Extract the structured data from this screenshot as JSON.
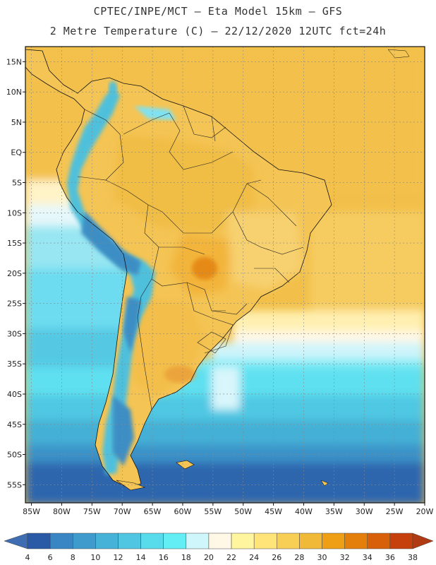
{
  "header": {
    "line1": "CPTEC/INPE/MCT –  Eta Model 15km – GFS",
    "line2": "2 Metre Temperature (C) – 22/12/2020 12UTC fct=24h"
  },
  "axes": {
    "lat_labels": [
      "15N",
      "10N",
      "5N",
      "EQ",
      "5S",
      "10S",
      "15S",
      "20S",
      "25S",
      "30S",
      "35S",
      "40S",
      "45S",
      "50S",
      "55S"
    ],
    "lon_labels": [
      "85W",
      "80W",
      "75W",
      "70W",
      "65W",
      "60W",
      "55W",
      "50W",
      "45W",
      "40W",
      "35W",
      "30W",
      "25W",
      "20W"
    ],
    "lat_range": [
      17.5,
      -58
    ],
    "lon_range": [
      -86,
      -20
    ]
  },
  "colorbar": {
    "labels": [
      "4",
      "6",
      "8",
      "10",
      "12",
      "14",
      "16",
      "18",
      "20",
      "22",
      "24",
      "26",
      "28",
      "30",
      "32",
      "34",
      "36",
      "38"
    ],
    "colors": [
      "#2a5aa6",
      "#3a86c4",
      "#3f9bcc",
      "#46b2d8",
      "#50c6e2",
      "#58dbea",
      "#63eef5",
      "#cff6fb",
      "#fff8e6",
      "#fff59e",
      "#ffe47a",
      "#f8cf55",
      "#f0b938",
      "#ef9f15",
      "#e57f0c",
      "#d9600a",
      "#c5400c"
    ],
    "under_color": "#3f6db2",
    "over_color": "#b03a12"
  },
  "map": {
    "ocean_warm": "#f2c04a",
    "ocean_mild": "#fff1c4",
    "land_color": "#f4c454",
    "andes_color": "#4fc0dc"
  }
}
